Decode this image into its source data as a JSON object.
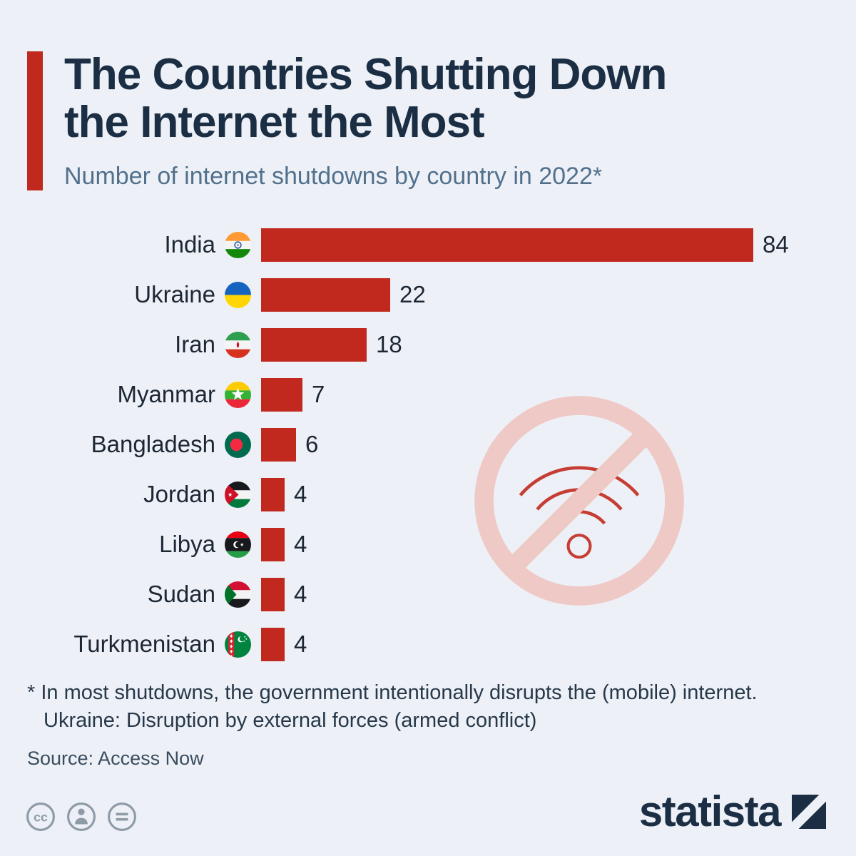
{
  "header": {
    "title_line1": "The Countries Shutting Down",
    "title_line2": "the Internet the Most",
    "subtitle": "Number of internet shutdowns by country in 2022*"
  },
  "chart_data": {
    "type": "bar",
    "orientation": "horizontal",
    "title": "The Countries Shutting Down the Internet the Most",
    "subtitle": "Number of internet shutdowns by country in 2022*",
    "categories": [
      "India",
      "Ukraine",
      "Iran",
      "Myanmar",
      "Bangladesh",
      "Jordan",
      "Libya",
      "Sudan",
      "Turkmenistan"
    ],
    "values": [
      84,
      22,
      18,
      7,
      6,
      4,
      4,
      4,
      4
    ],
    "flag_icons": [
      "india-flag-icon",
      "ukraine-flag-icon",
      "iran-flag-icon",
      "myanmar-flag-icon",
      "bangladesh-flag-icon",
      "jordan-flag-icon",
      "libya-flag-icon",
      "sudan-flag-icon",
      "turkmenistan-flag-icon"
    ],
    "xlim": [
      0,
      84
    ],
    "grid": false,
    "value_labels": true,
    "bar_color": "#c1291e"
  },
  "footnote": {
    "line1": "* In most shutdowns, the government intentionally disrupts the (mobile) internet.",
    "line2": "Ukraine: Disruption by external forces (armed conflict)",
    "source": "Source: Access Now"
  },
  "footer": {
    "logo_text": "statista",
    "license_icons": [
      "cc-icon",
      "attribution-icon",
      "equals-icon"
    ]
  },
  "watermark": {
    "icon": "no-internet-icon"
  },
  "colors": {
    "background": "#edf1f7",
    "accent_red": "#c1291e",
    "title_navy": "#1b2e44",
    "subtitle_slate": "#52708c",
    "bar_red": "#c1291e",
    "text_dark": "#1d2633",
    "watermark_pink": "#eec9c6",
    "license_gray": "#8e9ba6"
  }
}
